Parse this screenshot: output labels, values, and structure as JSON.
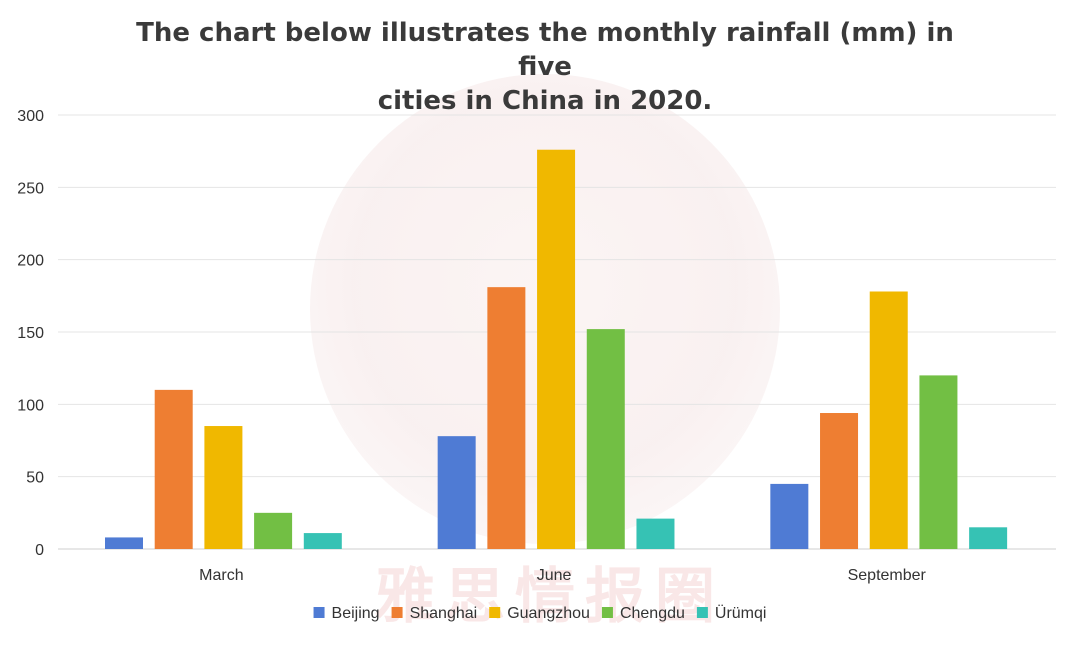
{
  "chart_data": {
    "type": "bar",
    "title": "The chart below illustrates the monthly rainfall (mm) in five cities in China in 2020.",
    "title_lines": [
      "The chart below illustrates the monthly rainfall (mm) in five",
      "cities in China in 2020."
    ],
    "xlabel": "",
    "ylabel": "",
    "categories": [
      "March",
      "June",
      "September"
    ],
    "ylim": [
      0,
      300
    ],
    "yticks": [
      0,
      50,
      100,
      150,
      200,
      250,
      300
    ],
    "grid": true,
    "legend_position": "bottom",
    "series": [
      {
        "name": "Beijing",
        "color": "#4f7bd4",
        "values": [
          8,
          78,
          45
        ]
      },
      {
        "name": "Shanghai",
        "color": "#ee7e32",
        "values": [
          110,
          181,
          94
        ]
      },
      {
        "name": "Guangzhou",
        "color": "#f0b800",
        "values": [
          85,
          276,
          178
        ]
      },
      {
        "name": "Chengdu",
        "color": "#72bf44",
        "values": [
          25,
          152,
          120
        ]
      },
      {
        "name": "Ürümqi",
        "color": "#36c2b4",
        "values": [
          11,
          21,
          15
        ]
      }
    ]
  },
  "watermark": {
    "text": "雅思情报圈"
  }
}
